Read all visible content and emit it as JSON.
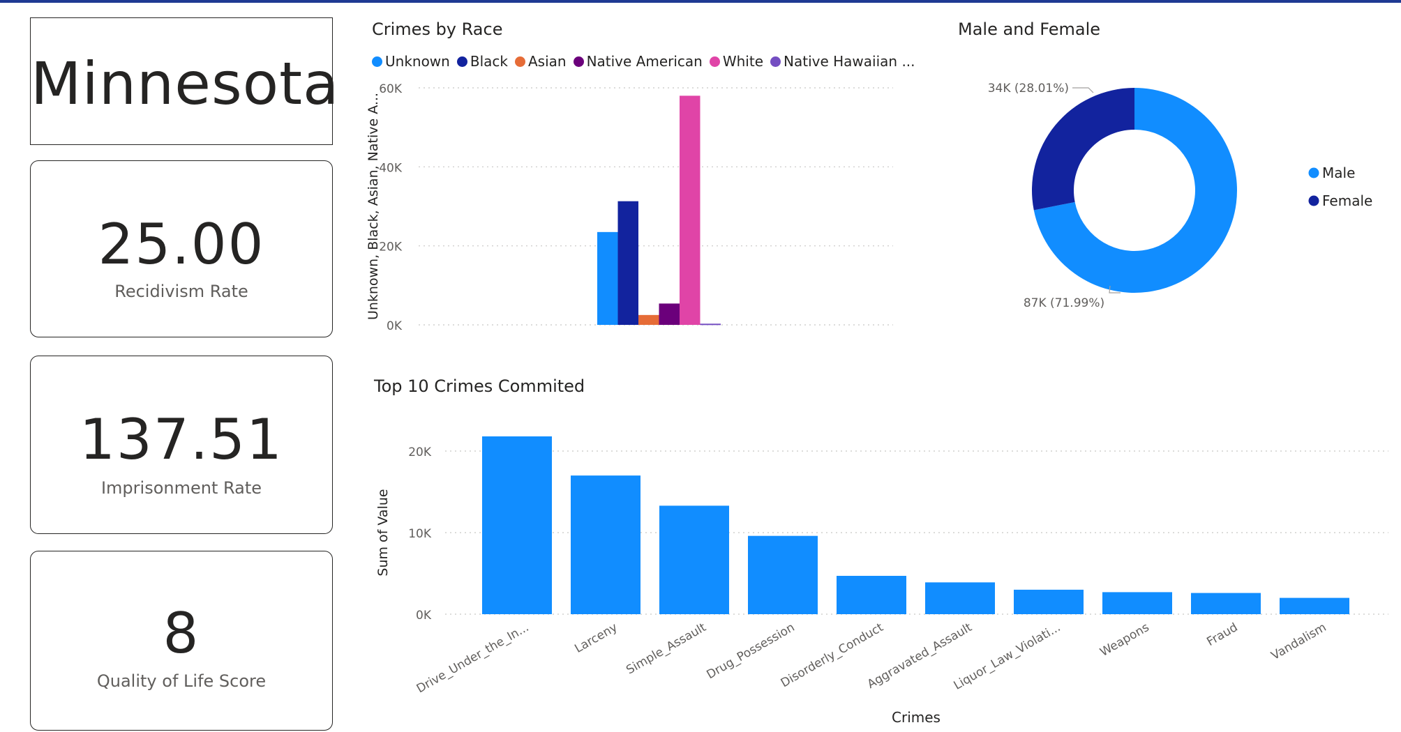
{
  "state": {
    "name": "Minnesota"
  },
  "kpis": [
    {
      "value": "25.00",
      "label": "Recidivism Rate"
    },
    {
      "value": "137.51",
      "label": "Imprisonment Rate"
    },
    {
      "value": "8",
      "label": "Quality of Life Score"
    }
  ],
  "race_chart": {
    "title": "Crimes by Race",
    "legend": [
      {
        "label": "Unknown",
        "color": "#118dff"
      },
      {
        "label": "Black",
        "color": "#12239e"
      },
      {
        "label": "Asian",
        "color": "#e66c37"
      },
      {
        "label": "Native American",
        "color": "#6b007b"
      },
      {
        "label": "White",
        "color": "#e044a7"
      },
      {
        "label": "Native Hawaiian ...",
        "color": "#744ec2"
      }
    ],
    "ylabel": "Unknown, Black, Asian, Native A...",
    "yticks": [
      "60K",
      "40K",
      "20K",
      "0K"
    ]
  },
  "gender_chart": {
    "title": "Male and Female",
    "legend": [
      {
        "label": "Male",
        "color": "#118dff"
      },
      {
        "label": "Female",
        "color": "#12239e"
      }
    ],
    "slice_labels": {
      "female": "34K (28.01%)",
      "male": "87K (71.99%)"
    }
  },
  "crimes_chart": {
    "title": "Top 10 Crimes Commited",
    "ylabel": "Sum of Value",
    "xlabel": "Crimes",
    "yticks": [
      "20K",
      "10K",
      "0K"
    ],
    "tick_labels": [
      "Drive_Under_the_In...",
      "Larceny",
      "Simple_Assault",
      "Drug_Possession",
      "Disorderly_Conduct",
      "Aggravated_Assault",
      "Liquor_Law_Violati...",
      "Weapons",
      "Fraud",
      "Vandalism"
    ]
  },
  "chart_data": [
    {
      "type": "bar",
      "title": "Crimes by Race",
      "series": [
        {
          "name": "Unknown",
          "values": [
            23500
          ]
        },
        {
          "name": "Black",
          "values": [
            31300
          ]
        },
        {
          "name": "Asian",
          "values": [
            2500
          ]
        },
        {
          "name": "Native American",
          "values": [
            5400
          ]
        },
        {
          "name": "White",
          "values": [
            58000
          ]
        },
        {
          "name": "Native Hawaiian ...",
          "values": [
            300
          ]
        }
      ],
      "ylim": [
        0,
        60000
      ],
      "ylabel": "Unknown, Black, Asian, Native A...",
      "grid": true,
      "legend": "top"
    },
    {
      "type": "pie",
      "title": "Male and Female",
      "categories": [
        "Male",
        "Female"
      ],
      "values": [
        87000,
        34000
      ],
      "percents": [
        71.99,
        28.01
      ],
      "legend": "right"
    },
    {
      "type": "bar",
      "title": "Top 10 Crimes Commited",
      "categories": [
        "Drive_Under_the_In...",
        "Larceny",
        "Simple_Assault",
        "Drug_Possession",
        "Disorderly_Conduct",
        "Aggravated_Assault",
        "Liquor_Law_Violati...",
        "Weapons",
        "Fraud",
        "Vandalism"
      ],
      "values": [
        21800,
        17000,
        13300,
        9600,
        4700,
        3900,
        3000,
        2700,
        2600,
        2000
      ],
      "xlabel": "Crimes",
      "ylabel": "Sum of Value",
      "ylim": [
        0,
        22000
      ],
      "grid": true
    }
  ]
}
